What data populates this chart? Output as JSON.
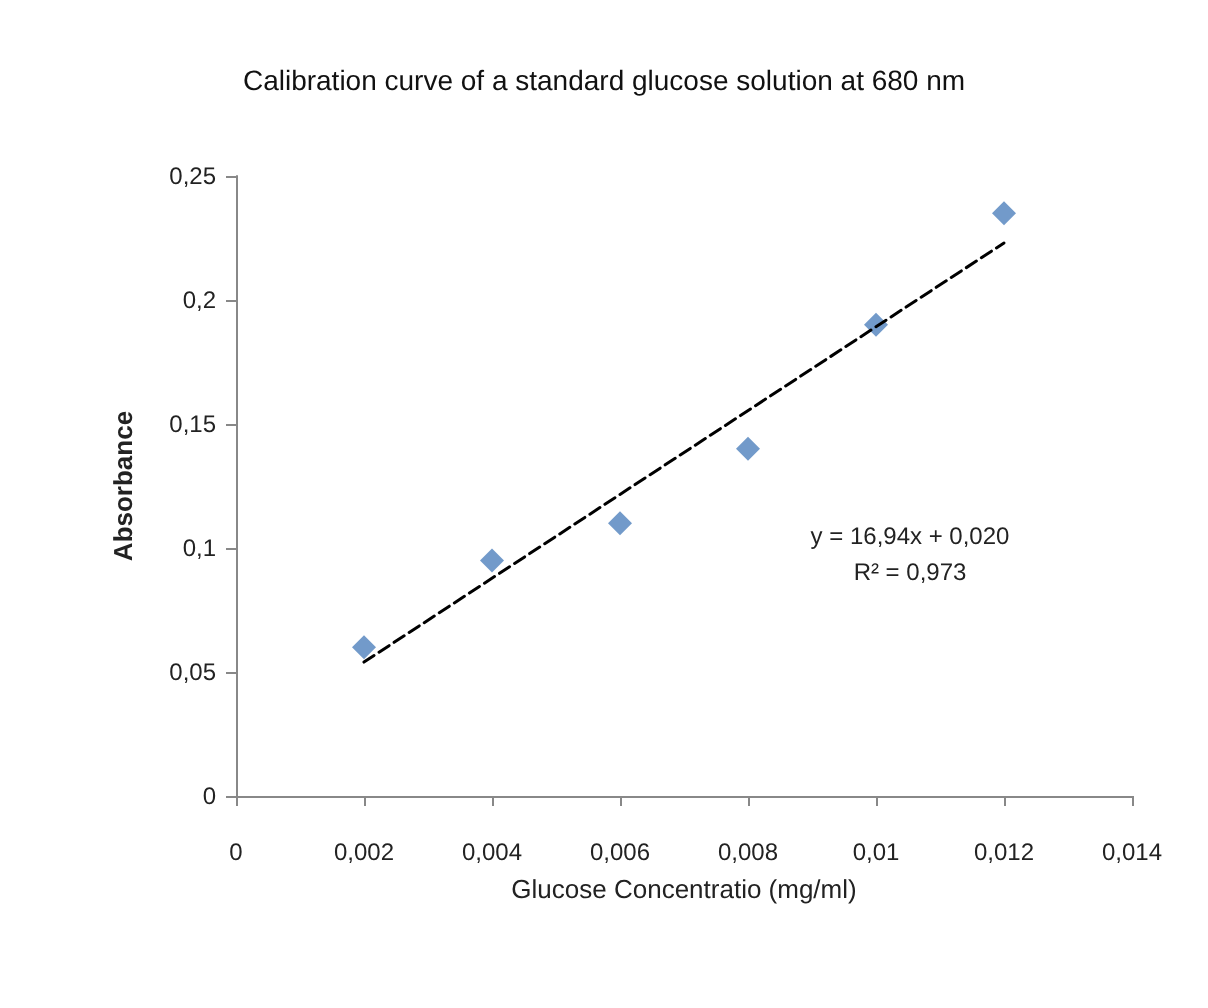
{
  "chart_data": {
    "type": "scatter",
    "title": "Calibration curve of a standard glucose solution at 680 nm",
    "xlabel": "Glucose Concentratio (mg/ml)",
    "ylabel": "Absorbance",
    "x": [
      0.002,
      0.004,
      0.006,
      0.008,
      0.01,
      0.012
    ],
    "series": [
      {
        "color": "#4f81bd",
        "marker": "diamond",
        "values": [
          0.06,
          0.095,
          0.11,
          0.14,
          0.19,
          0.235
        ]
      },
      {
        "type": "line",
        "color": "#000000",
        "line_style": "dashed",
        "marker": "none",
        "x": [
          0.002,
          0.012
        ],
        "values": [
          0.054,
          0.223
        ]
      }
    ],
    "xlim": [
      0,
      0.014
    ],
    "xticks": [
      0,
      {
        "value": 0.002,
        "label": "0,002"
      },
      {
        "value": 0.004,
        "label": "0,004"
      },
      {
        "value": 0.006,
        "label": "0,006"
      },
      {
        "value": 0.008,
        "label": "0,008"
      },
      {
        "value": 0.01,
        "label": "0,01"
      },
      {
        "value": 0.012,
        "label": "0,012"
      },
      {
        "value": 0.014,
        "label": "0,014"
      }
    ],
    "ylim": [
      0,
      0.25
    ],
    "yticks": [
      0,
      {
        "value": 0.05,
        "label": "0,05"
      },
      {
        "value": 0.1,
        "label": "0,1"
      },
      {
        "value": 0.15,
        "label": "0,15"
      },
      {
        "value": 0.2,
        "label": "0,2"
      },
      {
        "value": 0.25,
        "label": "0,25"
      }
    ],
    "annotations": [
      "y = 16,94x + 0,020",
      "R² = 0,973"
    ],
    "grid": false
  }
}
